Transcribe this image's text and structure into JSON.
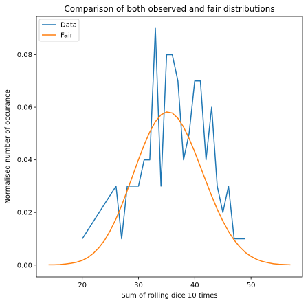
{
  "chart_data": {
    "type": "line",
    "title": "Comparison of both observed and fair distributions",
    "xlabel": "Sum of rolling dice 10 times",
    "ylabel": "Normalised number of occurance",
    "xlim": [
      11.85,
      59.15
    ],
    "ylim": [
      -0.0045,
      0.0945
    ],
    "xticks": [
      20,
      30,
      40,
      50
    ],
    "xtick_labels": [
      "20",
      "30",
      "40",
      "50"
    ],
    "yticks": [
      0.0,
      0.02,
      0.04,
      0.06,
      0.08
    ],
    "ytick_labels": [
      "0.00",
      "0.02",
      "0.04",
      "0.06",
      "0.08"
    ],
    "grid": false,
    "legend_position": "upper-left",
    "series": [
      {
        "name": "Data",
        "color": "#1f77b4",
        "x": [
          20,
          26,
          27,
          28,
          29,
          30,
          31,
          32,
          33,
          34,
          35,
          36,
          37,
          38,
          39,
          40,
          41,
          42,
          43,
          44,
          45,
          46,
          47,
          48,
          49
        ],
        "y": [
          0.01,
          0.03,
          0.01,
          0.03,
          0.03,
          0.03,
          0.04,
          0.04,
          0.09,
          0.03,
          0.08,
          0.08,
          0.07,
          0.04,
          0.05,
          0.07,
          0.07,
          0.04,
          0.06,
          0.03,
          0.02,
          0.03,
          0.01,
          0.01,
          0.01
        ]
      },
      {
        "name": "Fair",
        "color": "#ff7f0e",
        "x": [
          14,
          15,
          16,
          17,
          18,
          19,
          20,
          21,
          22,
          23,
          24,
          25,
          26,
          27,
          28,
          29,
          30,
          31,
          32,
          33,
          34,
          35,
          36,
          37,
          38,
          39,
          40,
          41,
          42,
          43,
          44,
          45,
          46,
          47,
          48,
          49,
          50,
          51,
          52,
          53,
          54,
          55,
          56,
          57
        ],
        "y": [
          0.0001,
          0.0001,
          0.0002,
          0.0004,
          0.0007,
          0.0011,
          0.0018,
          0.0029,
          0.0045,
          0.0067,
          0.0095,
          0.0132,
          0.0176,
          0.0227,
          0.0283,
          0.0342,
          0.0401,
          0.0457,
          0.0506,
          0.0545,
          0.0571,
          0.0582,
          0.0578,
          0.0558,
          0.0525,
          0.0481,
          0.043,
          0.0374,
          0.0318,
          0.0263,
          0.0212,
          0.0167,
          0.0128,
          0.0095,
          0.0069,
          0.0048,
          0.0033,
          0.0022,
          0.0014,
          0.0009,
          0.0005,
          0.0003,
          0.0002,
          0.0001
        ]
      }
    ]
  }
}
